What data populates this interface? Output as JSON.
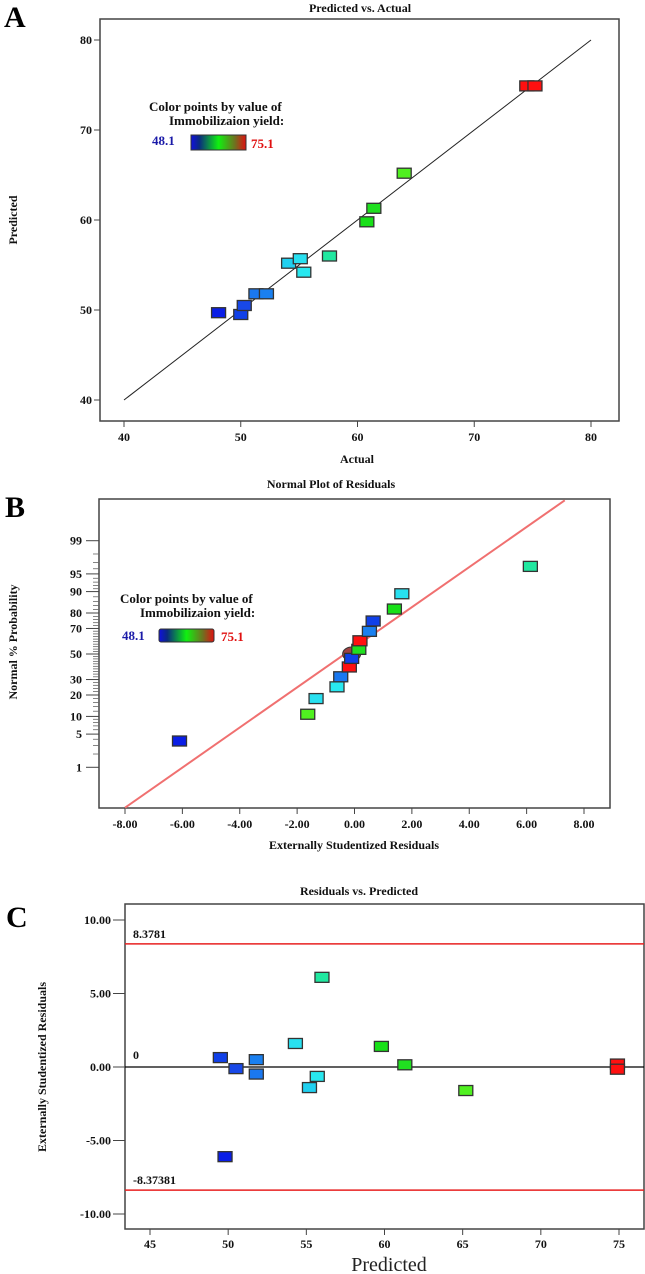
{
  "chart_data": [
    {
      "panel_label": "A",
      "type": "scatter",
      "title": "Predicted vs. Actual",
      "xlabel": "Actual",
      "ylabel": "Predicted",
      "xlim": [
        40,
        82
      ],
      "ylim": [
        37.7,
        82.3
      ],
      "xticks": [
        "40",
        "50",
        "60",
        "70",
        "80"
      ],
      "yticks": [
        "40",
        "50",
        "60",
        "70",
        "80"
      ],
      "reference_line": {
        "x": [
          40,
          80
        ],
        "y": [
          40,
          80
        ],
        "color": "#222222"
      },
      "legend": {
        "line1": "Color points by value of",
        "line2": "Immobilizaion yield:",
        "min": "48.1",
        "max": "75.1",
        "min_color": "#1a1aa8",
        "max_color": "#e01010"
      },
      "points": [
        {
          "x": 48.1,
          "y": 49.7,
          "color": "#0a1ee6"
        },
        {
          "x": 50.0,
          "y": 49.5,
          "color": "#1040e8"
        },
        {
          "x": 50.3,
          "y": 50.5,
          "color": "#1848e8"
        },
        {
          "x": 51.3,
          "y": 51.8,
          "color": "#1a78f0"
        },
        {
          "x": 52.2,
          "y": 51.8,
          "color": "#1a80f0"
        },
        {
          "x": 54.1,
          "y": 55.2,
          "color": "#20d0f0"
        },
        {
          "x": 55.1,
          "y": 55.7,
          "color": "#28e0f0"
        },
        {
          "x": 55.4,
          "y": 54.2,
          "color": "#28e8f0"
        },
        {
          "x": 57.6,
          "y": 56.0,
          "color": "#20e8a0"
        },
        {
          "x": 60.8,
          "y": 59.8,
          "color": "#18e018"
        },
        {
          "x": 61.4,
          "y": 61.3,
          "color": "#20e020"
        },
        {
          "x": 64.0,
          "y": 65.2,
          "color": "#50f020"
        },
        {
          "x": 74.5,
          "y": 74.9,
          "color": "#ff1010"
        },
        {
          "x": 75.2,
          "y": 74.9,
          "color": "#ff1010"
        }
      ]
    },
    {
      "panel_label": "B",
      "type": "scatter",
      "title": "Normal Plot of Residuals",
      "xlabel": "Externally Studentized Residuals",
      "ylabel": "Normal % Probability",
      "xlim": [
        -8.7,
        8.9
      ],
      "xticks": [
        "-8.00",
        "-6.00",
        "-4.00",
        "-2.00",
        "0.00",
        "2.00",
        "4.00",
        "6.00",
        "8.00"
      ],
      "yticks": [
        "1",
        "5",
        "10",
        "20",
        "30",
        "50",
        "70",
        "80",
        "90",
        "95",
        "99"
      ],
      "y_scale": "normal-probability",
      "fit_line": {
        "x": [
          -8.0,
          7.33
        ],
        "probability": [
          0.08,
          99.92
        ],
        "color": "#f07070"
      },
      "legend": {
        "line1": "Color points by value of",
        "line2": "Immobilizaion yield:",
        "min": "48.1",
        "max": "75.1",
        "min_color": "#1a1aa8",
        "max_color": "#e01010"
      },
      "points": [
        {
          "x": -6.1,
          "y": 3.7,
          "color": "#0a1ee6"
        },
        {
          "x": -1.63,
          "y": 10.8,
          "color": "#50f020"
        },
        {
          "x": -1.34,
          "y": 18.0,
          "color": "#28e0f0"
        },
        {
          "x": -0.61,
          "y": 25.0,
          "color": "#28e8f0"
        },
        {
          "x": -0.48,
          "y": 32.0,
          "color": "#1a78f0"
        },
        {
          "x": -0.18,
          "y": 39.5,
          "color": "#ff1010"
        },
        {
          "x": -0.1,
          "y": 50.0,
          "color": "#a04040",
          "marker": "circle"
        },
        {
          "x": -0.1,
          "y": 46.4,
          "color": "#1040e8"
        },
        {
          "x": 0.15,
          "y": 53.8,
          "color": "#20e020"
        },
        {
          "x": 0.19,
          "y": 60.7,
          "color": "#ff1010"
        },
        {
          "x": 0.52,
          "y": 67.9,
          "color": "#1a80f0"
        },
        {
          "x": 0.65,
          "y": 75.1,
          "color": "#1040e8"
        },
        {
          "x": 1.39,
          "y": 82.2,
          "color": "#18e018"
        },
        {
          "x": 1.65,
          "y": 89.2,
          "color": "#28e0f0"
        },
        {
          "x": 6.13,
          "y": 96.4,
          "color": "#20e8a0"
        }
      ]
    },
    {
      "panel_label": "C",
      "type": "scatter",
      "title": "Residuals vs. Predicted",
      "xlabel": "Predicted",
      "ylabel": "Externally Studentized Residuals",
      "xlim": [
        43.3,
        75.7
      ],
      "ylim": [
        -11.1,
        11.1
      ],
      "xticks": [
        "45",
        "50",
        "55",
        "60",
        "65",
        "70",
        "75"
      ],
      "yticks": [
        "-10.00",
        "-5.00",
        "0.00",
        "5.00",
        "10.00"
      ],
      "limit_lines": [
        {
          "y": 8.3781,
          "label": "8.3781",
          "color": "#e82020"
        },
        {
          "y": -8.37381,
          "label": "-8.37381",
          "color": "#e82020"
        }
      ],
      "zero_line": {
        "y": 0,
        "label": "0",
        "color": "#000000"
      },
      "points": [
        {
          "x": 49.5,
          "y": 0.64,
          "color": "#1040e8"
        },
        {
          "x": 50.5,
          "y": -0.11,
          "color": "#1848e8"
        },
        {
          "x": 51.8,
          "y": 0.5,
          "color": "#1a80f0"
        },
        {
          "x": 51.8,
          "y": -0.48,
          "color": "#1a78f0"
        },
        {
          "x": 54.3,
          "y": 1.6,
          "color": "#28e0f0"
        },
        {
          "x": 55.2,
          "y": -1.4,
          "color": "#20d0f0"
        },
        {
          "x": 55.7,
          "y": -0.64,
          "color": "#28e8f0"
        },
        {
          "x": 56.0,
          "y": 6.1,
          "color": "#20e8a0"
        },
        {
          "x": 49.8,
          "y": -6.1,
          "color": "#0a1ee6"
        },
        {
          "x": 59.8,
          "y": 1.4,
          "color": "#18e018"
        },
        {
          "x": 61.3,
          "y": 0.15,
          "color": "#20e020"
        },
        {
          "x": 65.2,
          "y": -1.6,
          "color": "#50f020"
        },
        {
          "x": 74.9,
          "y": 0.2,
          "color": "#ff1010"
        },
        {
          "x": 74.9,
          "y": -0.15,
          "color": "#ff1010"
        }
      ]
    }
  ]
}
